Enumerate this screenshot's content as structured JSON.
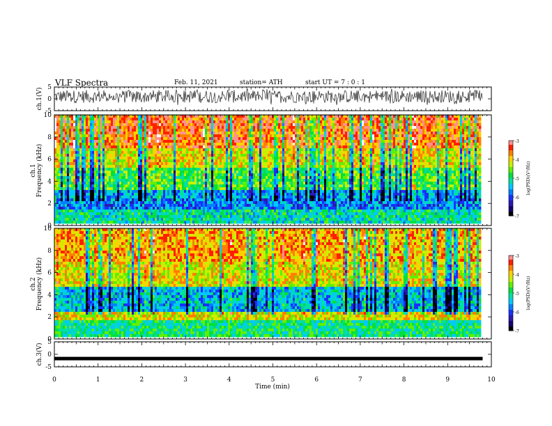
{
  "header": {
    "title": "VLF Spectra",
    "date": "Feb. 11, 2021",
    "station": "station= ATH",
    "start": "start UT =  7 : 0 : 1"
  },
  "chart_data": [
    {
      "type": "line",
      "panel": "ch1-waveform",
      "ylabel": "ch.1(V)",
      "yticks": [
        "5",
        "0",
        "-5"
      ],
      "ylim": [
        -5,
        5
      ],
      "xlim": [
        0,
        10
      ],
      "color": "#000000",
      "description_values": "dense noise waveform roughly between -2 and +4 V"
    },
    {
      "type": "heatmap",
      "panel": "ch1-spectrogram",
      "ylabel": "ch.1 Frequency (kHz)",
      "yticks": [
        "0",
        "2",
        "4",
        "6",
        "8",
        "10"
      ],
      "ylim": [
        0,
        10
      ],
      "xlim": [
        0,
        9.8
      ],
      "colorbar": {
        "label": "log(PSD)(V²/Hz)",
        "ticks": [
          "-3",
          "-4",
          "-5",
          "-6",
          "-7"
        ],
        "range": [
          -7,
          -3
        ]
      }
    },
    {
      "type": "heatmap",
      "panel": "ch2-spectrogram",
      "ylabel": "ch.2 Frequency (kHz)",
      "yticks": [
        "0",
        "2",
        "4",
        "6",
        "8",
        "10"
      ],
      "ylim": [
        0,
        10
      ],
      "xlim": [
        0,
        9.8
      ],
      "colorbar": {
        "label": "log(PSD)(V²/Hz)",
        "ticks": [
          "-3",
          "-4",
          "-5",
          "-6",
          "-7"
        ],
        "range": [
          -7,
          -3
        ]
      }
    },
    {
      "type": "line",
      "panel": "ch3-waveform",
      "ylabel": "ch.3(V)",
      "yticks": [
        "5",
        "0",
        "-5"
      ],
      "ylim": [
        -5,
        5
      ],
      "xlim": [
        0,
        10
      ],
      "values_constant": -1.7,
      "color": "#000000"
    }
  ],
  "xaxis": {
    "label": "Time  (min)",
    "ticks": [
      "0",
      "1",
      "2",
      "3",
      "4",
      "5",
      "6",
      "7",
      "8",
      "9",
      "10"
    ],
    "range": [
      0,
      10
    ]
  },
  "colormap": [
    "#000000",
    "#1a0070",
    "#2a1ab0",
    "#1a30ff",
    "#0080ff",
    "#00c8ff",
    "#00e0a0",
    "#00e040",
    "#60f000",
    "#c8f000",
    "#ffd000",
    "#ff8000",
    "#ff2000",
    "#ff9090",
    "#ffffff"
  ]
}
